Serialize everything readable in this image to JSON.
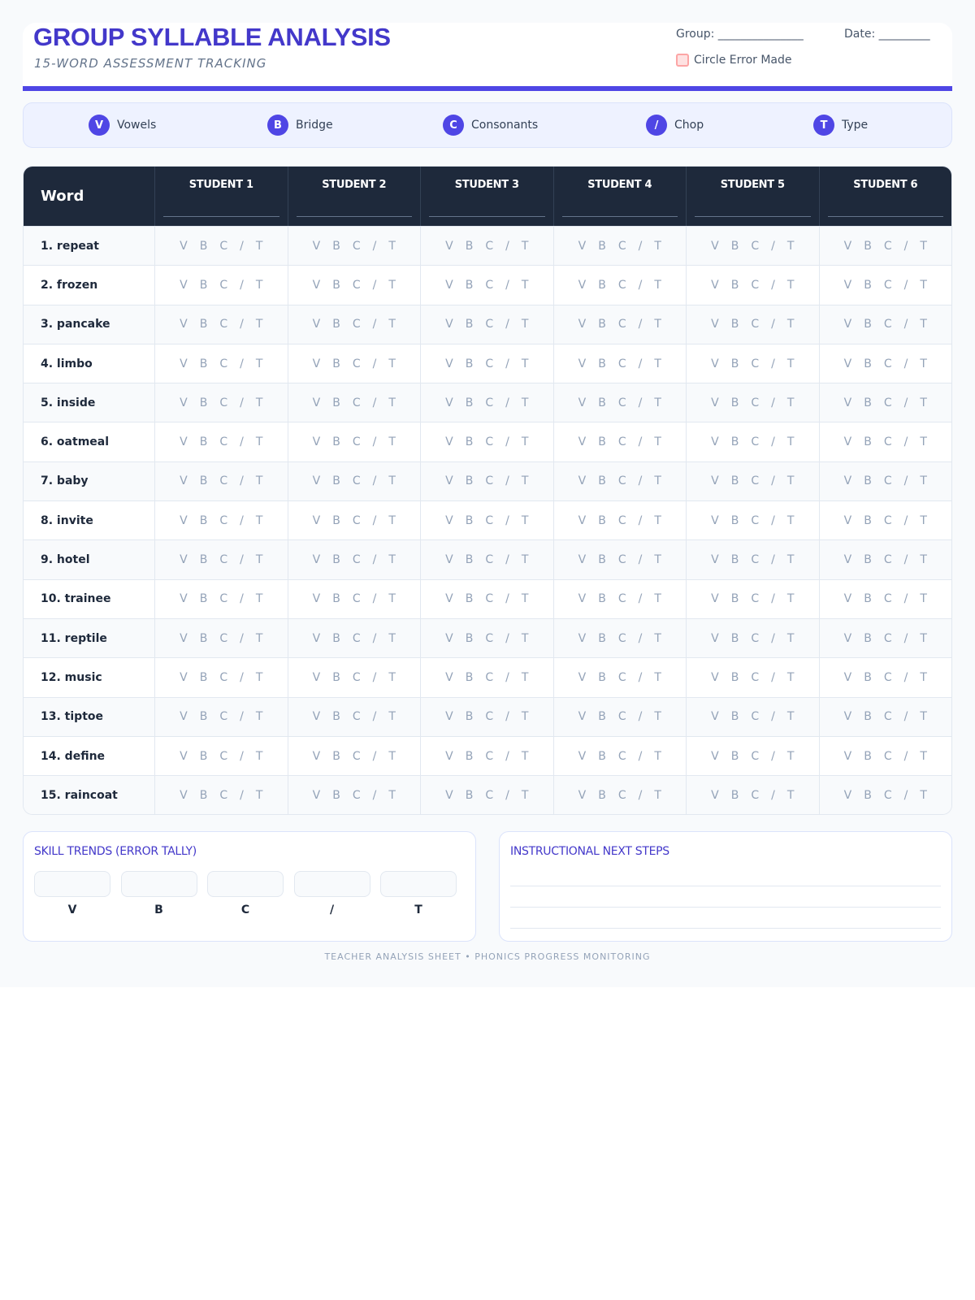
{
  "header": {
    "title": "GROUP SYLLABLE ANALYSIS",
    "subtitle": "15-WORD ASSESSMENT TRACKING",
    "group_label": "Group: _______________",
    "date_label": "Date: _________",
    "circle_label": "Circle Error Made"
  },
  "legend": [
    {
      "code": "V",
      "label": "Vowels"
    },
    {
      "code": "B",
      "label": "Bridge"
    },
    {
      "code": "C",
      "label": "Consonants"
    },
    {
      "code": "/",
      "label": "Chop"
    },
    {
      "code": "T",
      "label": "Type"
    }
  ],
  "table": {
    "word_header": "Word",
    "students": [
      "STUDENT 1",
      "STUDENT 2",
      "STUDENT 3",
      "STUDENT 4",
      "STUDENT 5",
      "STUDENT 6"
    ],
    "codes": [
      "V",
      "B",
      "C",
      "/",
      "T"
    ],
    "words": [
      "1. repeat",
      "2. frozen",
      "3. pancake",
      "4. limbo",
      "5. inside",
      "6. oatmeal",
      "7. baby",
      "8. invite",
      "9. hotel",
      "10. trainee",
      "11. reptile",
      "12. music",
      "13. tiptoe",
      "14. define",
      "15. raincoat"
    ]
  },
  "skill_trends": {
    "title": "SKILL TRENDS (ERROR TALLY)",
    "labels": [
      "V",
      "B",
      "C",
      "/",
      "T"
    ]
  },
  "next_steps": {
    "title": "INSTRUCTIONAL NEXT STEPS"
  },
  "footer": "TEACHER ANALYSIS SHEET • PHONICS PROGRESS MONITORING",
  "colors": {
    "accent": "#4f46e5",
    "header_dark": "#1e293b",
    "checkbox": "#fca5a5"
  }
}
